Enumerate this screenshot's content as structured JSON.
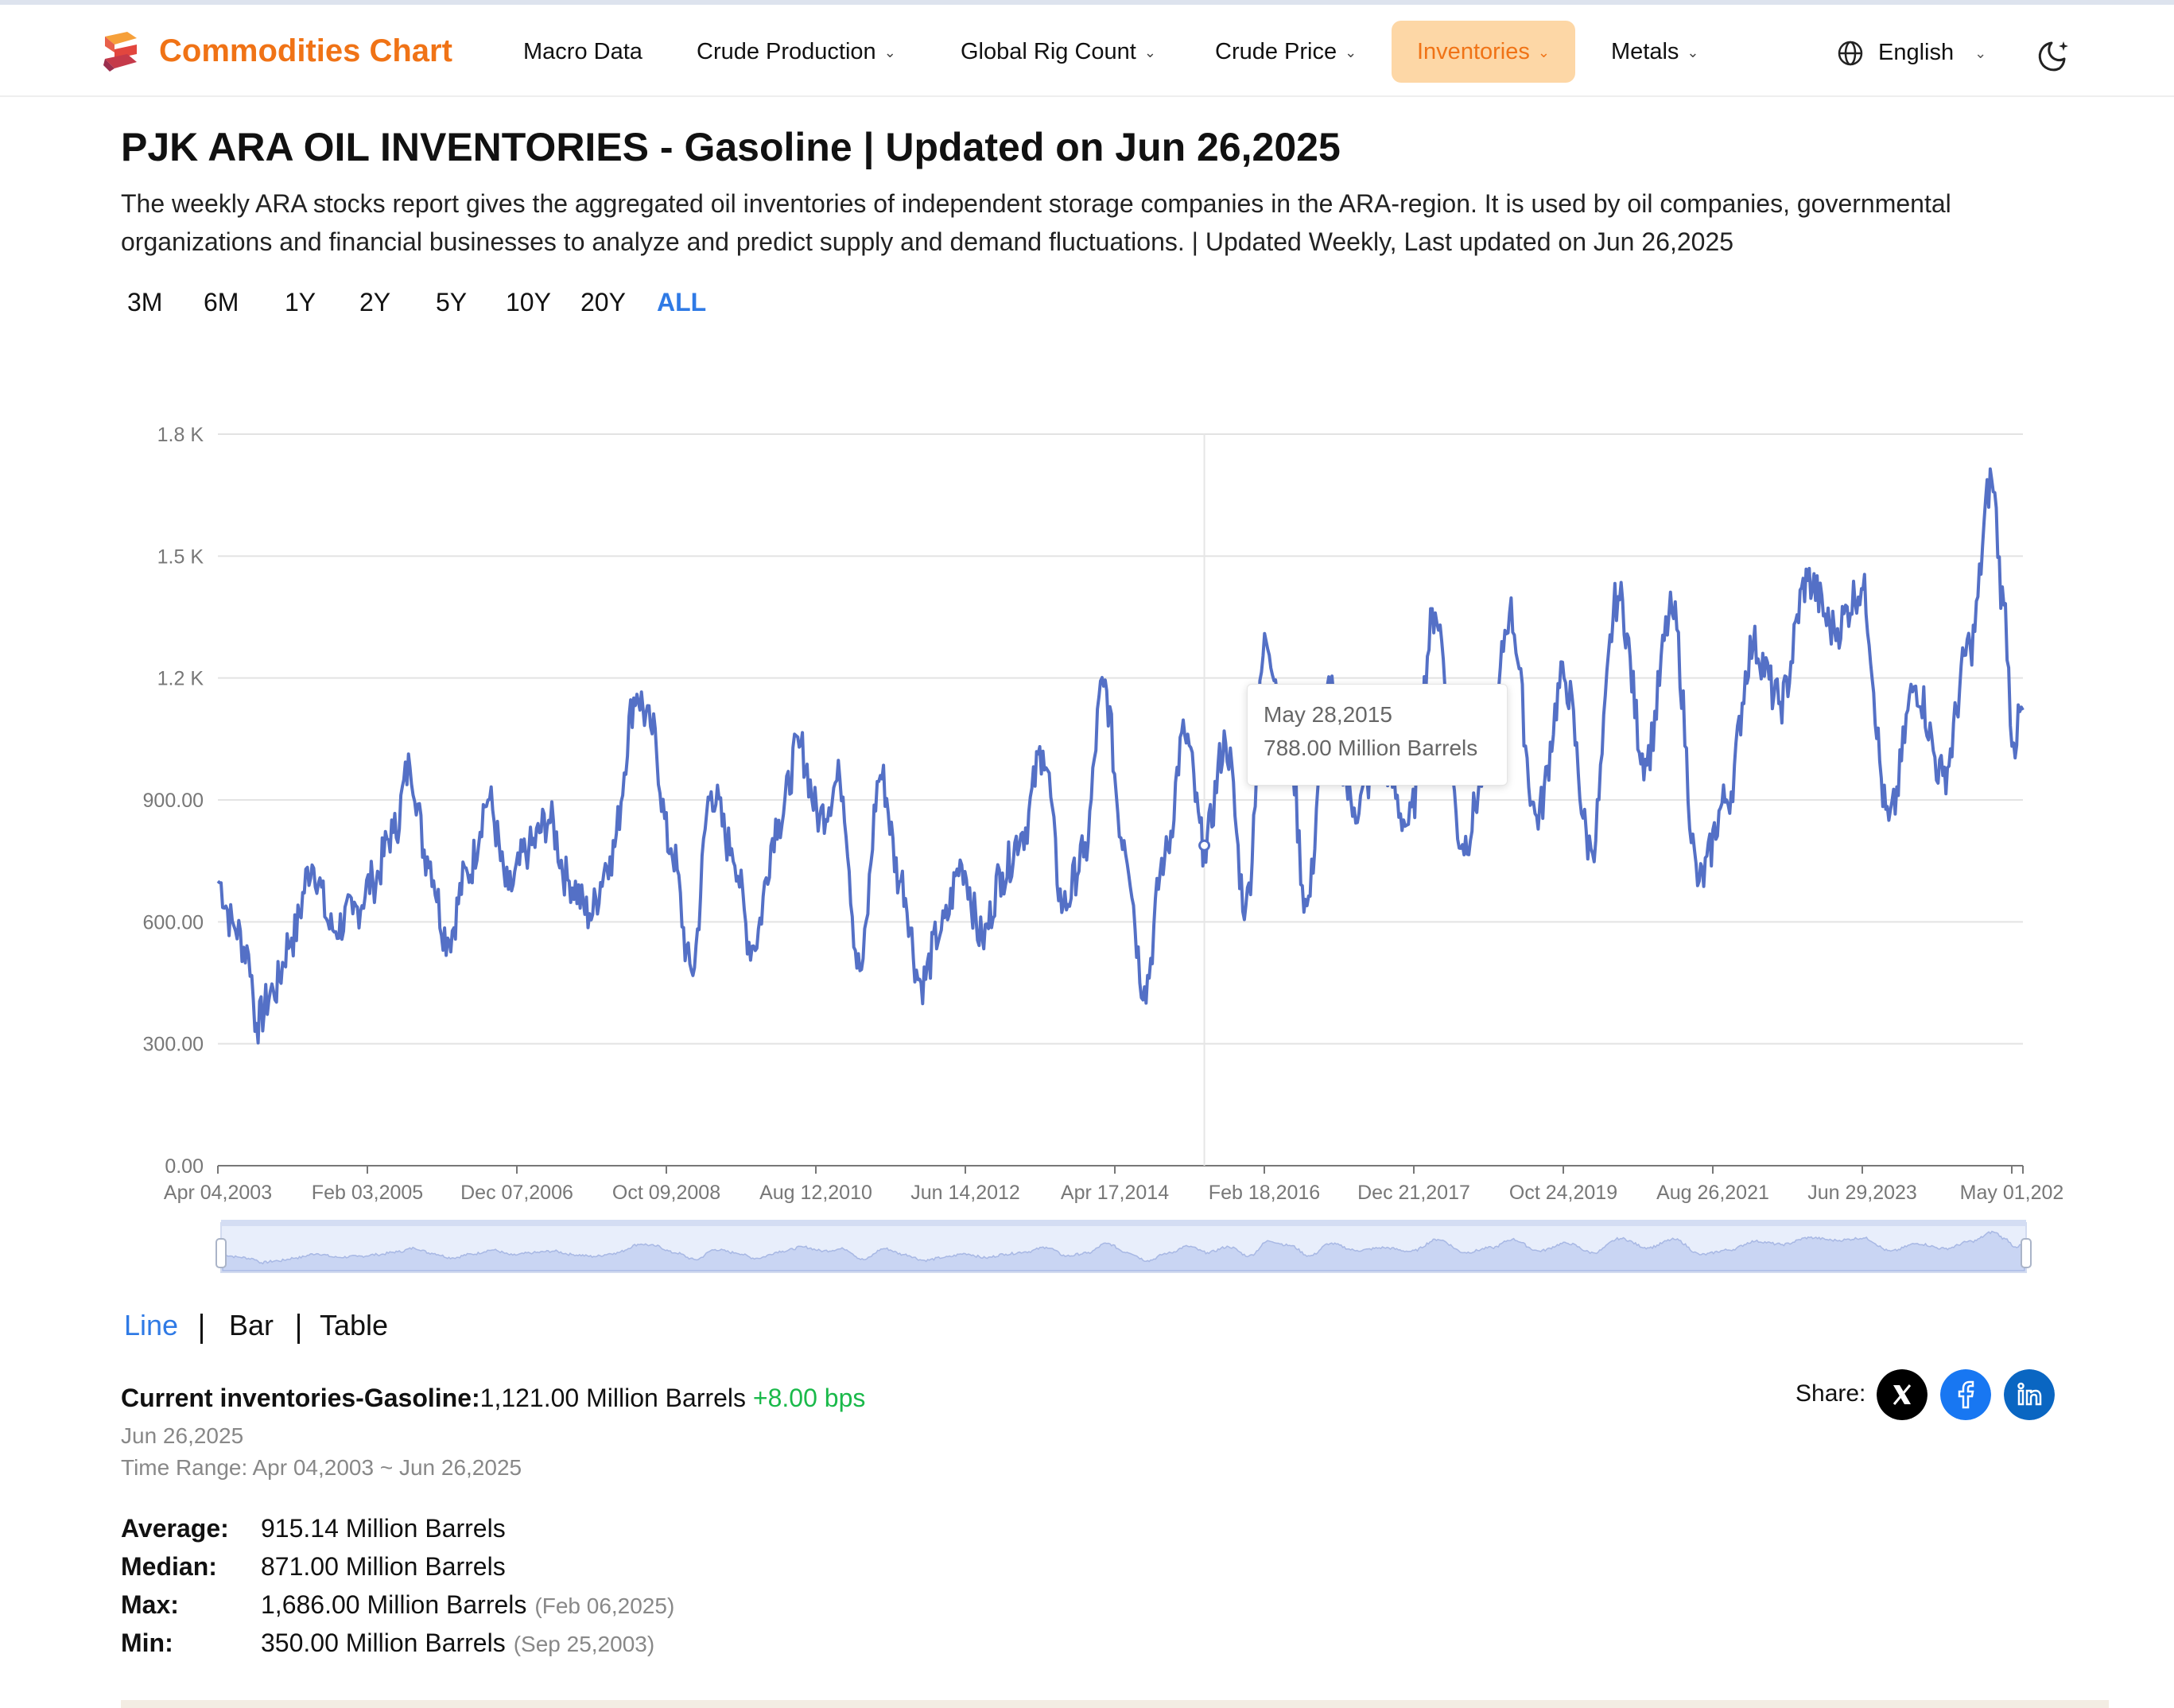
{
  "header": {
    "brand": "Commodities Chart",
    "nav": [
      {
        "label": "Macro Data",
        "dropdown": false,
        "active": false
      },
      {
        "label": "Crude Production",
        "dropdown": true,
        "active": false
      },
      {
        "label": "Global Rig Count",
        "dropdown": true,
        "active": false
      },
      {
        "label": "Crude Price",
        "dropdown": true,
        "active": false
      },
      {
        "label": "Inventories",
        "dropdown": true,
        "active": true
      },
      {
        "label": "Metals",
        "dropdown": true,
        "active": false
      }
    ],
    "language": "English",
    "theme_icon": "moon-icon"
  },
  "page": {
    "title": "PJK ARA OIL INVENTORIES - Gasoline | Updated on Jun 26,2025",
    "description": "The weekly ARA stocks report gives the aggregated oil inventories of independent storage companies in the ARA-region. It is used by oil companies, governmental organizations and financial businesses to analyze and predict supply and demand fluctuations. | Updated Weekly, Last updated on Jun 26,2025"
  },
  "ranges": [
    "3M",
    "6M",
    "1Y",
    "2Y",
    "5Y",
    "10Y",
    "20Y",
    "ALL"
  ],
  "active_range": "ALL",
  "chart_data": {
    "type": "line",
    "title": "",
    "xlabel": "",
    "ylabel": "",
    "ylim": [
      0,
      1800
    ],
    "y_ticks": [
      "0.00",
      "300.00",
      "600.00",
      "900.00",
      "1.2 K",
      "1.5 K",
      "1.8 K"
    ],
    "x_ticks": [
      "Apr 04,2003",
      "Feb 03,2005",
      "Dec 07,2006",
      "Oct 09,2008",
      "Aug 12,2010",
      "Jun 14,2012",
      "Apr 17,2014",
      "Feb 18,2016",
      "Dec 21,2017",
      "Oct 24,2019",
      "Aug 26,2021",
      "Jun 29,2023",
      "May 01,202"
    ],
    "x_range": [
      "2003-04-04",
      "2025-06-26"
    ],
    "grid": true,
    "line_color": "#5470c6",
    "series": [
      {
        "points": [
          [
            "2003-04-04",
            700
          ],
          [
            "2003-06-15",
            590
          ],
          [
            "2003-08-20",
            520
          ],
          [
            "2003-09-25",
            350
          ],
          [
            "2003-12-10",
            430
          ],
          [
            "2004-03-01",
            560
          ],
          [
            "2004-06-01",
            740
          ],
          [
            "2004-09-01",
            580
          ],
          [
            "2004-12-01",
            620
          ],
          [
            "2005-03-01",
            700
          ],
          [
            "2005-06-01",
            820
          ],
          [
            "2005-08-15",
            980
          ],
          [
            "2005-11-01",
            760
          ],
          [
            "2006-02-01",
            560
          ],
          [
            "2006-05-01",
            720
          ],
          [
            "2006-08-01",
            900
          ],
          [
            "2006-11-01",
            680
          ],
          [
            "2007-02-01",
            780
          ],
          [
            "2007-05-01",
            850
          ],
          [
            "2007-08-01",
            700
          ],
          [
            "2007-11-01",
            620
          ],
          [
            "2008-02-01",
            760
          ],
          [
            "2008-06-01",
            1160
          ],
          [
            "2008-08-01",
            1080
          ],
          [
            "2008-11-01",
            780
          ],
          [
            "2009-02-01",
            480
          ],
          [
            "2009-05-01",
            920
          ],
          [
            "2009-08-01",
            780
          ],
          [
            "2009-11-01",
            540
          ],
          [
            "2010-03-01",
            850
          ],
          [
            "2010-06-01",
            1030
          ],
          [
            "2010-09-01",
            860
          ],
          [
            "2010-12-01",
            950
          ],
          [
            "2011-03-01",
            480
          ],
          [
            "2011-06-01",
            960
          ],
          [
            "2011-09-01",
            700
          ],
          [
            "2011-12-01",
            450
          ],
          [
            "2012-03-01",
            580
          ],
          [
            "2012-06-01",
            740
          ],
          [
            "2012-09-01",
            560
          ],
          [
            "2012-12-01",
            720
          ],
          [
            "2013-03-01",
            820
          ],
          [
            "2013-06-01",
            1020
          ],
          [
            "2013-09-01",
            640
          ],
          [
            "2013-12-01",
            760
          ],
          [
            "2014-03-01",
            1180
          ],
          [
            "2014-06-01",
            800
          ],
          [
            "2014-09-01",
            440
          ],
          [
            "2014-12-01",
            760
          ],
          [
            "2015-03-01",
            1060
          ],
          [
            "2015-05-28",
            788
          ],
          [
            "2015-09-01",
            1040
          ],
          [
            "2015-12-01",
            640
          ],
          [
            "2016-03-01",
            1290
          ],
          [
            "2016-06-01",
            1100
          ],
          [
            "2016-09-01",
            640
          ],
          [
            "2016-12-01",
            1180
          ],
          [
            "2017-04-01",
            880
          ],
          [
            "2017-08-01",
            1000
          ],
          [
            "2017-12-01",
            840
          ],
          [
            "2018-04-01",
            1360
          ],
          [
            "2018-08-01",
            790
          ],
          [
            "2018-12-01",
            1000
          ],
          [
            "2019-03-01",
            1360
          ],
          [
            "2019-07-01",
            860
          ],
          [
            "2019-11-01",
            1200
          ],
          [
            "2020-03-01",
            780
          ],
          [
            "2020-07-01",
            1400
          ],
          [
            "2020-11-01",
            1000
          ],
          [
            "2021-03-01",
            1360
          ],
          [
            "2021-07-01",
            700
          ],
          [
            "2021-11-01",
            900
          ],
          [
            "2022-03-01",
            1280
          ],
          [
            "2022-07-01",
            1140
          ],
          [
            "2022-11-01",
            1440
          ],
          [
            "2023-03-01",
            1320
          ],
          [
            "2023-07-01",
            1420
          ],
          [
            "2023-11-01",
            850
          ],
          [
            "2024-03-01",
            1180
          ],
          [
            "2024-07-01",
            960
          ],
          [
            "2024-11-01",
            1280
          ],
          [
            "2025-02-06",
            1686
          ],
          [
            "2025-04-01",
            1380
          ],
          [
            "2025-05-15",
            1040
          ],
          [
            "2025-06-26",
            1121
          ]
        ]
      }
    ],
    "tooltip": {
      "date": "May 28,2015",
      "value": "788.00 Million Barrels"
    }
  },
  "views": [
    "Line",
    "Bar",
    "Table"
  ],
  "active_view": "Line",
  "current": {
    "label": "Current inventories-Gasoline:",
    "value": "1,121.00 Million Barrels",
    "change": "+8.00 bps",
    "date": "Jun 26,2025",
    "time_range": "Time Range: Apr 04,2003 ~ Jun 26,2025"
  },
  "stats": [
    {
      "label": "Average:",
      "value": "915.14 Million Barrels",
      "date": ""
    },
    {
      "label": "Median:",
      "value": "871.00 Million Barrels",
      "date": ""
    },
    {
      "label": "Max:",
      "value": "1,686.00 Million Barrels",
      "date": "(Feb 06,2025)"
    },
    {
      "label": "Min:",
      "value": "350.00 Million Barrels",
      "date": "(Sep 25,2003)"
    }
  ],
  "share": {
    "label": "Share:",
    "icons": [
      "x-icon",
      "facebook-icon",
      "linkedin-icon"
    ]
  },
  "colors": {
    "brand": "#f07316",
    "accent": "#2f7ae5",
    "positive": "#1ab94a",
    "line": "#5470c6",
    "nav_active_bg": "#fdd7a6"
  }
}
